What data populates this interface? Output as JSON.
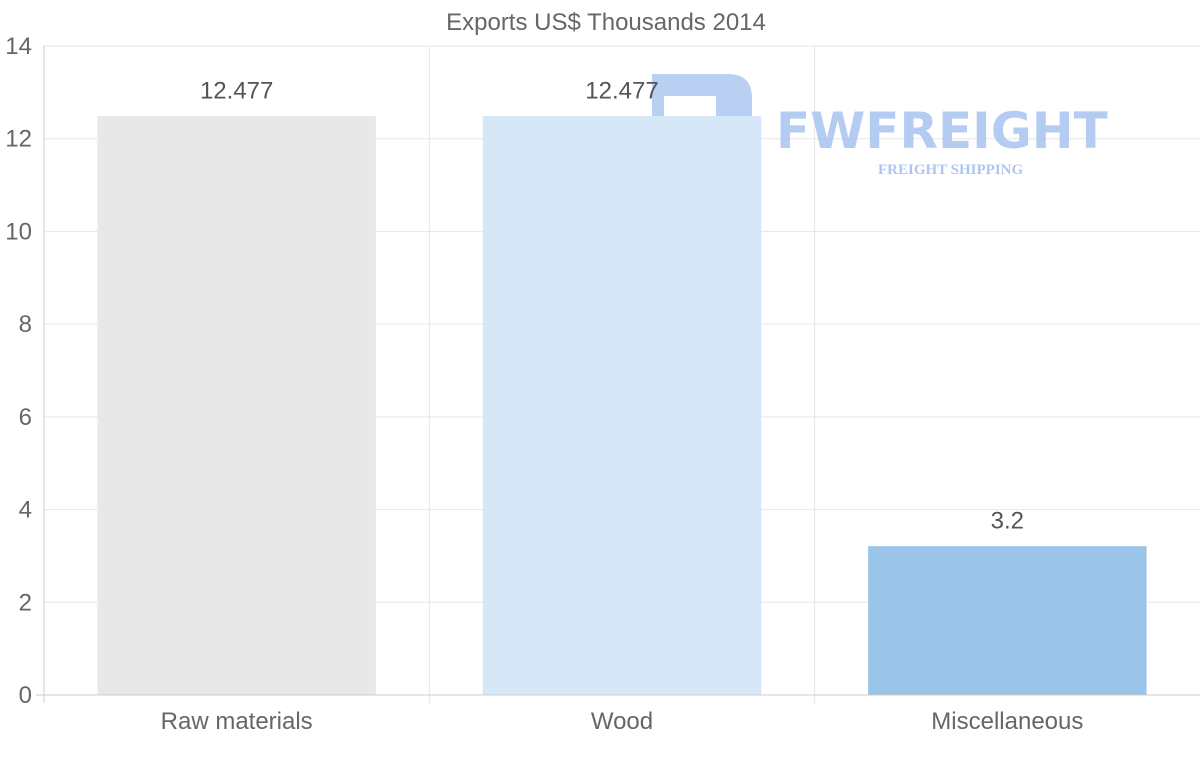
{
  "chart_data": {
    "type": "bar",
    "title": "Exports US$ Thousands 2014",
    "categories": [
      "Raw materials",
      "Wood",
      "Miscellaneous"
    ],
    "values": [
      12.477,
      12.477,
      3.2
    ],
    "value_labels": [
      "12.477",
      "12.477",
      "3.2"
    ],
    "bar_colors": [
      "#e8e8e8",
      "#d6e7f8",
      "#9bc5e8"
    ],
    "ylim": [
      0,
      14
    ],
    "yticks": [
      0,
      2,
      4,
      6,
      8,
      10,
      12,
      14
    ],
    "xlabel": "",
    "ylabel": "",
    "grid": true,
    "legend": "none"
  },
  "watermark": {
    "brand": "FWFREIGHT",
    "tagline": "FREIGHT SHIPPING",
    "color": "#a8c4f0"
  },
  "colors": {
    "grid": "#e6e6e6",
    "axis": "#cccccc",
    "text": "#666666"
  }
}
